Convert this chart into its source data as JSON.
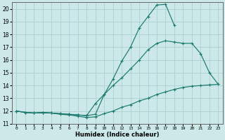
{
  "xlabel": "Humidex (Indice chaleur)",
  "bg_color": "#cce8e8",
  "grid_color": "#b0d4d4",
  "line_color": "#1a7a6e",
  "line1_x": [
    0,
    1,
    2,
    3,
    4,
    5,
    6,
    7,
    8,
    9,
    10,
    11,
    12,
    13,
    14,
    15,
    16,
    17,
    18
  ],
  "line1_y": [
    12.0,
    11.9,
    11.85,
    11.9,
    11.85,
    11.8,
    11.75,
    11.7,
    11.65,
    11.75,
    13.3,
    14.5,
    15.9,
    17.0,
    18.5,
    19.4,
    20.3,
    20.35,
    18.7
  ],
  "line2_x": [
    0,
    1,
    2,
    3,
    4,
    5,
    6,
    7,
    8,
    9,
    10,
    11,
    12,
    13,
    14,
    15,
    16,
    17,
    18,
    19,
    20,
    21,
    22,
    23
  ],
  "line2_y": [
    12.0,
    11.9,
    11.85,
    11.9,
    11.85,
    11.8,
    11.75,
    11.7,
    11.65,
    12.6,
    13.3,
    14.0,
    14.6,
    15.3,
    16.0,
    16.8,
    17.3,
    17.5,
    17.4,
    17.3,
    17.3,
    16.5,
    15.0,
    14.1
  ],
  "line3_x": [
    0,
    1,
    2,
    3,
    4,
    5,
    6,
    7,
    8,
    9,
    10,
    11,
    12,
    13,
    14,
    15,
    16,
    17,
    18,
    19,
    20,
    21,
    22,
    23
  ],
  "line3_y": [
    12.0,
    11.9,
    11.85,
    11.85,
    11.85,
    11.75,
    11.7,
    11.6,
    11.5,
    11.55,
    11.8,
    12.0,
    12.3,
    12.5,
    12.8,
    13.0,
    13.3,
    13.5,
    13.7,
    13.85,
    13.95,
    14.0,
    14.05,
    14.1
  ],
  "xlim": [
    -0.5,
    23.5
  ],
  "ylim": [
    11.0,
    20.5
  ],
  "yticks": [
    11,
    12,
    13,
    14,
    15,
    16,
    17,
    18,
    19,
    20
  ],
  "xticks": [
    0,
    1,
    2,
    3,
    4,
    5,
    6,
    7,
    8,
    9,
    10,
    11,
    12,
    13,
    14,
    15,
    16,
    17,
    18,
    19,
    20,
    21,
    22,
    23
  ]
}
